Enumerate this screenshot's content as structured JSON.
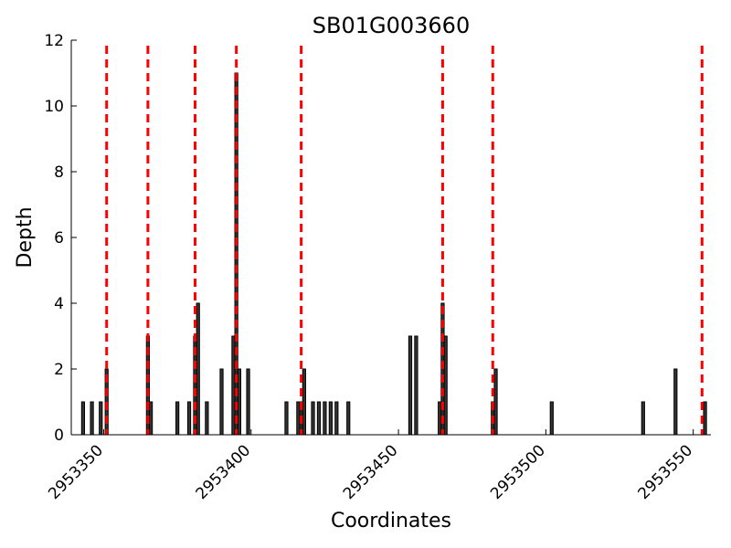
{
  "chart_data": {
    "type": "bar",
    "title": "SB01G003660",
    "xlabel": "Coordinates",
    "ylabel": "Depth",
    "xlim": [
      2953339,
      2953556
    ],
    "ylim": [
      0,
      12
    ],
    "yticks": [
      0,
      2,
      4,
      6,
      8,
      10,
      12
    ],
    "xticks": [
      2953350,
      2953400,
      2953450,
      2953500,
      2953550
    ],
    "bar_color": "#333333",
    "marker_color": "#ff0000",
    "grid": false,
    "bars": [
      {
        "x": 2953343,
        "depth": 1
      },
      {
        "x": 2953346,
        "depth": 1
      },
      {
        "x": 2953349,
        "depth": 1
      },
      {
        "x": 2953351,
        "depth": 2
      },
      {
        "x": 2953365,
        "depth": 3
      },
      {
        "x": 2953366,
        "depth": 1
      },
      {
        "x": 2953375,
        "depth": 1
      },
      {
        "x": 2953379,
        "depth": 1
      },
      {
        "x": 2953381,
        "depth": 3
      },
      {
        "x": 2953382,
        "depth": 4
      },
      {
        "x": 2953385,
        "depth": 1
      },
      {
        "x": 2953390,
        "depth": 2
      },
      {
        "x": 2953394,
        "depth": 3
      },
      {
        "x": 2953395,
        "depth": 11
      },
      {
        "x": 2953396,
        "depth": 2
      },
      {
        "x": 2953399,
        "depth": 2
      },
      {
        "x": 2953412,
        "depth": 1
      },
      {
        "x": 2953416,
        "depth": 1
      },
      {
        "x": 2953417,
        "depth": 1
      },
      {
        "x": 2953418,
        "depth": 2
      },
      {
        "x": 2953421,
        "depth": 1
      },
      {
        "x": 2953423,
        "depth": 1
      },
      {
        "x": 2953425,
        "depth": 1
      },
      {
        "x": 2953427,
        "depth": 1
      },
      {
        "x": 2953429,
        "depth": 1
      },
      {
        "x": 2953433,
        "depth": 1
      },
      {
        "x": 2953454,
        "depth": 3
      },
      {
        "x": 2953456,
        "depth": 3
      },
      {
        "x": 2953464,
        "depth": 1
      },
      {
        "x": 2953465,
        "depth": 4
      },
      {
        "x": 2953466,
        "depth": 3
      },
      {
        "x": 2953482,
        "depth": 1
      },
      {
        "x": 2953483,
        "depth": 2
      },
      {
        "x": 2953502,
        "depth": 1
      },
      {
        "x": 2953533,
        "depth": 1
      },
      {
        "x": 2953554,
        "depth": 1
      },
      {
        "x": 2953544,
        "depth": 2
      }
    ],
    "markers": [
      2953351,
      2953365,
      2953381,
      2953395,
      2953417,
      2953465,
      2953482,
      2953553
    ]
  }
}
